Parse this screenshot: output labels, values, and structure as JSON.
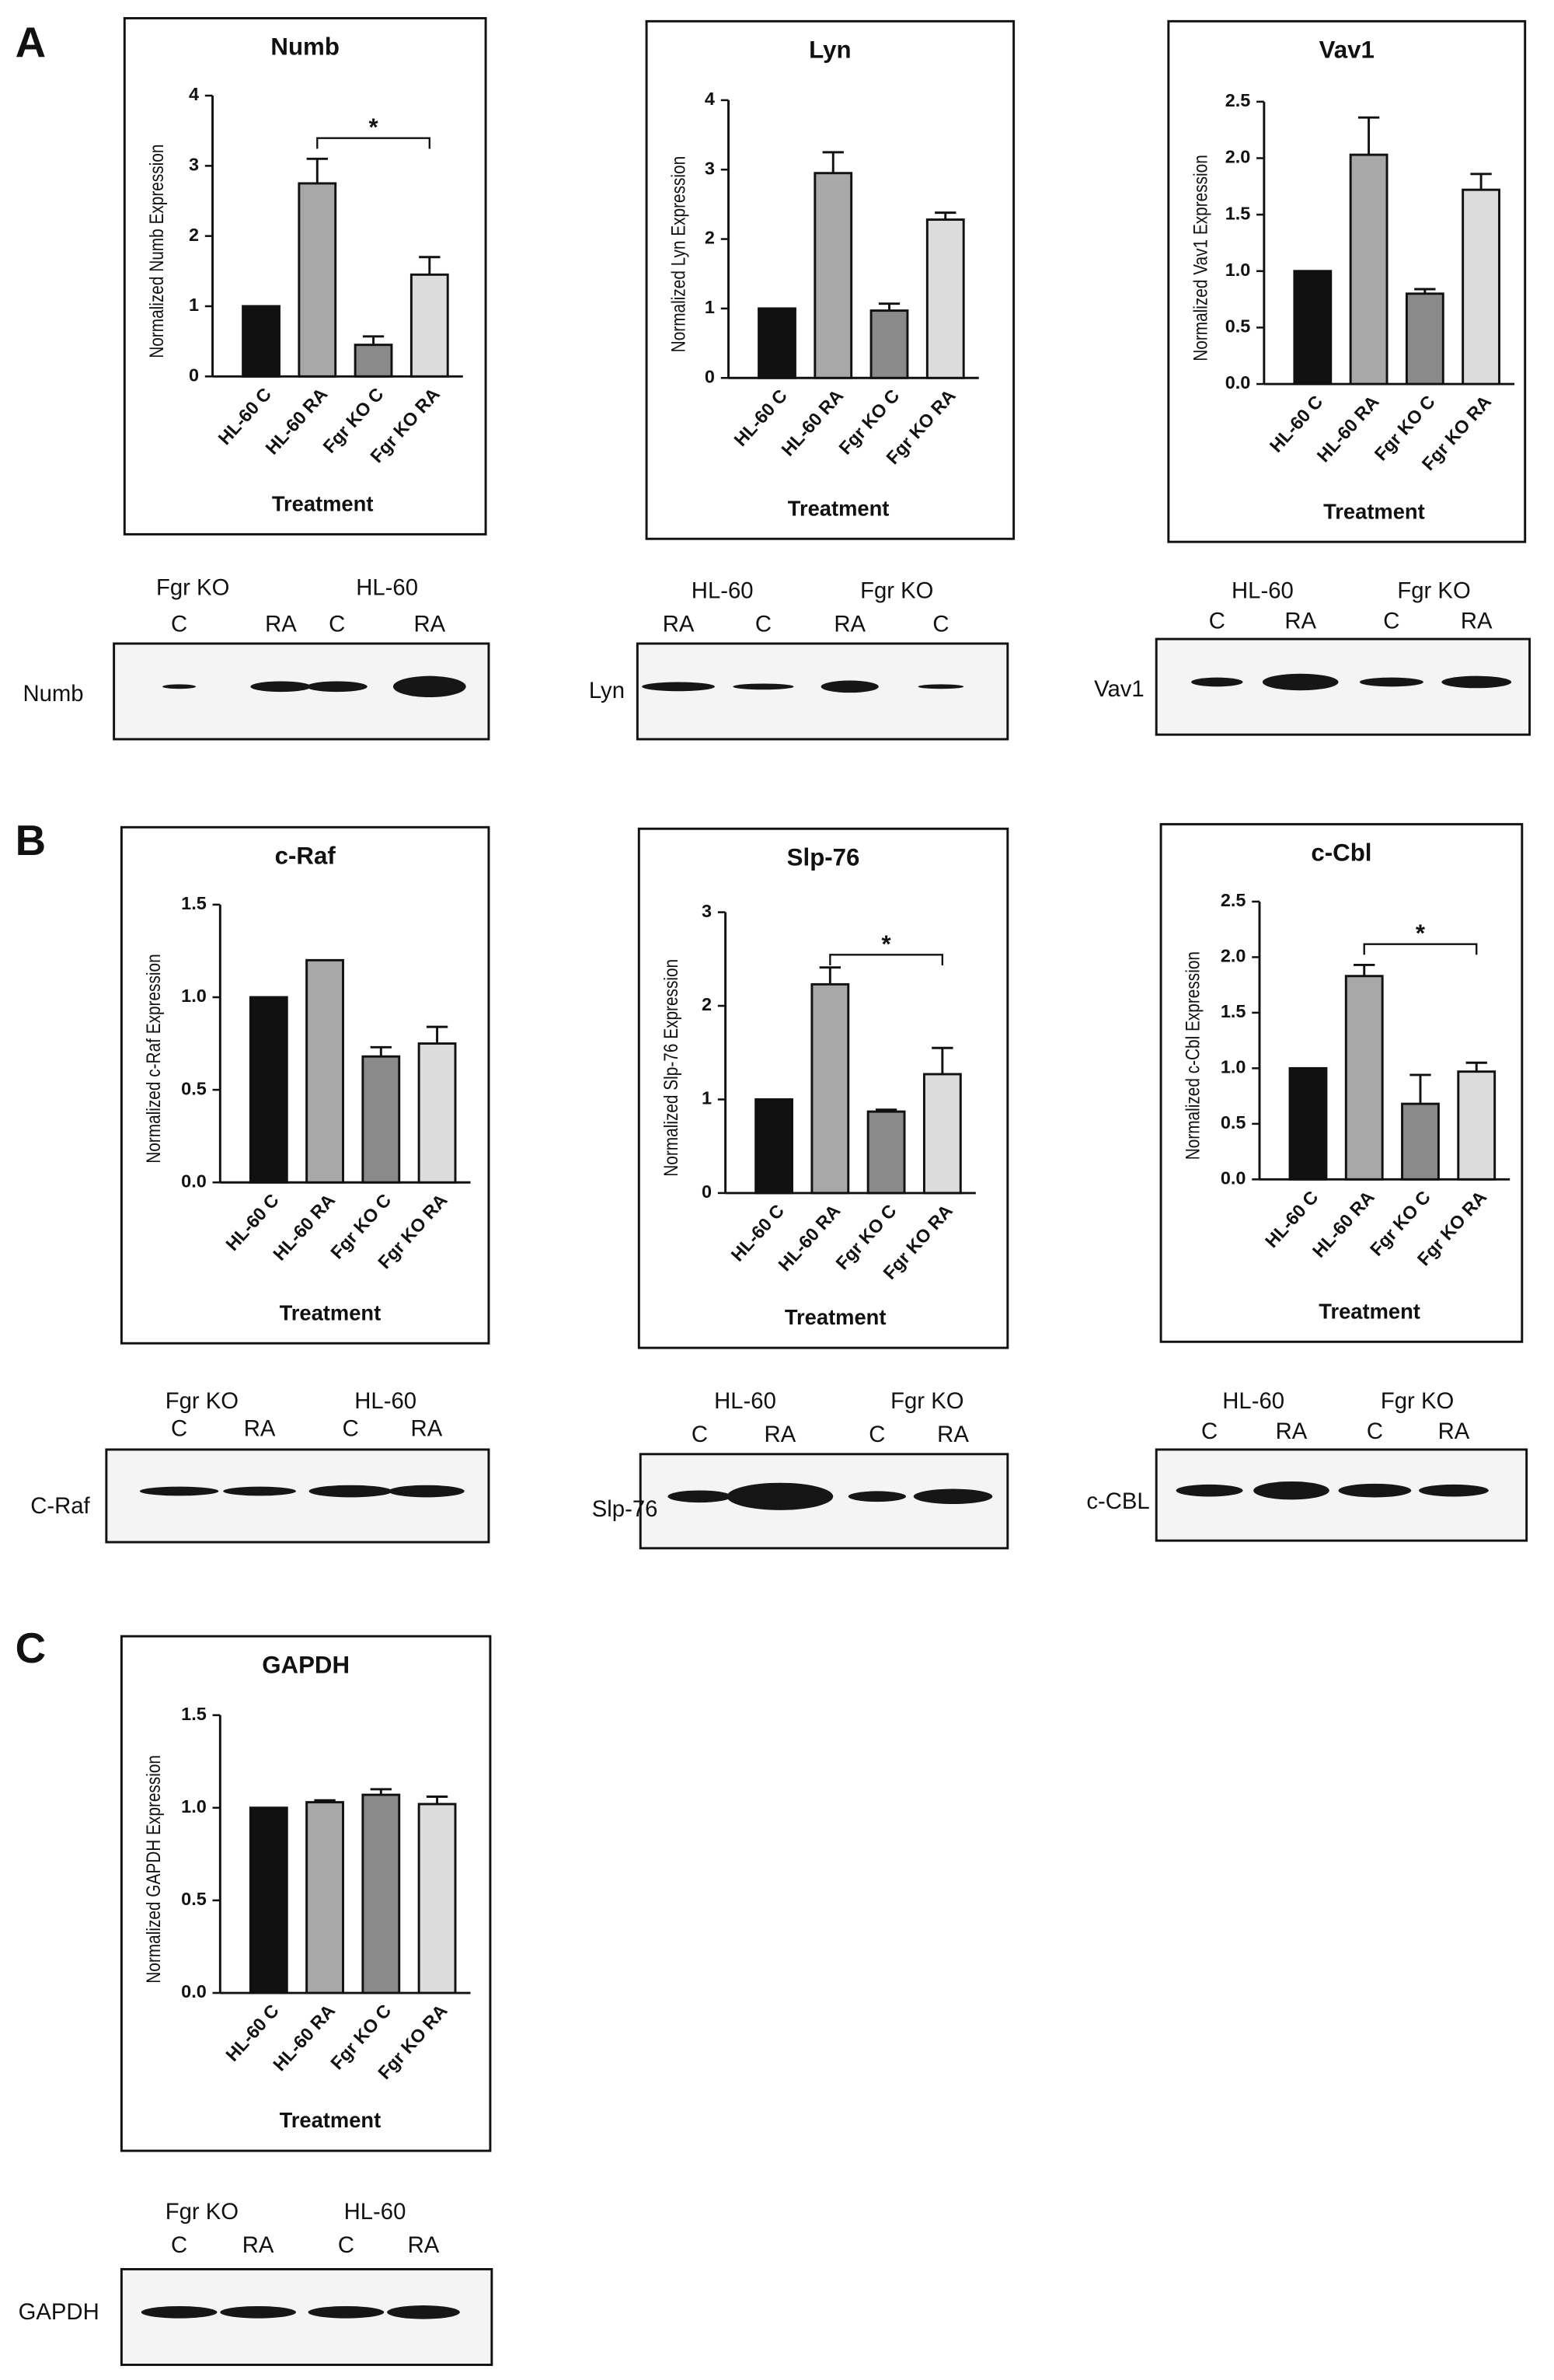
{
  "panels": [
    "A",
    "B",
    "C"
  ],
  "chart_data": [
    {
      "type": "bar",
      "title": "Numb",
      "ylabel": "Normalized Numb Expression",
      "xlabel": "Treatment",
      "categories": [
        "HL-60 C",
        "HL-60 RA",
        "Fgr KO C",
        "Fgr KO RA"
      ],
      "values": [
        1,
        2.75,
        0.45,
        1.45
      ],
      "errors": [
        null,
        0.35,
        0.12,
        0.25
      ],
      "colors": [
        "#111111",
        "#a8a8a8",
        "#8a8a8a",
        "#dcdcdc"
      ],
      "ylim": [
        0,
        4
      ],
      "yticks": [
        0,
        1,
        2,
        3,
        4
      ],
      "annotation": "*"
    },
    {
      "type": "bar",
      "title": "Lyn",
      "ylabel": "Normalized Lyn Expression",
      "xlabel": "Treatment",
      "categories": [
        "HL-60 C",
        "HL-60 RA",
        "Fgr KO C",
        "Fgr KO RA"
      ],
      "values": [
        1,
        2.95,
        0.97,
        2.28
      ],
      "errors": [
        null,
        0.3,
        0.1,
        0.1
      ],
      "colors": [
        "#111111",
        "#a8a8a8",
        "#8a8a8a",
        "#dcdcdc"
      ],
      "ylim": [
        0,
        4
      ],
      "yticks": [
        0,
        1,
        2,
        3,
        4
      ]
    },
    {
      "type": "bar",
      "title": "Vav1",
      "ylabel": "Normalized Vav1 Expression",
      "xlabel": "Treatment",
      "categories": [
        "HL-60 C",
        "HL-60 RA",
        "Fgr KO C",
        "Fgr KO RA"
      ],
      "values": [
        1,
        2.03,
        0.8,
        1.72
      ],
      "errors": [
        null,
        0.33,
        0.04,
        0.14
      ],
      "colors": [
        "#111111",
        "#a8a8a8",
        "#8a8a8a",
        "#dcdcdc"
      ],
      "ylim": [
        0,
        2.5
      ],
      "yticks": [
        {
          "value": 0,
          "label": "0.0"
        },
        0.5,
        {
          "value": 1,
          "label": "1.0"
        },
        1.5,
        {
          "value": 2,
          "label": "2.0"
        },
        2.5
      ]
    },
    {
      "type": "bar",
      "title": "c-Raf",
      "ylabel": "Normalized c-Raf Expression",
      "xlabel": "Treatment",
      "categories": [
        "HL-60 C",
        "HL-60 RA",
        "Fgr KO C",
        "Fgr KO RA"
      ],
      "values": [
        1,
        1.2,
        0.68,
        0.75
      ],
      "errors": [
        null,
        null,
        0.05,
        0.09
      ],
      "colors": [
        "#111111",
        "#a8a8a8",
        "#8a8a8a",
        "#dcdcdc"
      ],
      "ylim": [
        0,
        1.5
      ],
      "yticks": [
        {
          "value": 0,
          "label": "0.0"
        },
        0.5,
        {
          "value": 1,
          "label": "1.0"
        },
        1.5
      ]
    },
    {
      "type": "bar",
      "title": "Slp-76",
      "ylabel": "Normalized Slp-76 Expression",
      "xlabel": "Treatment",
      "categories": [
        "HL-60 C",
        "HL-60 RA",
        "Fgr KO C",
        "Fgr KO RA"
      ],
      "values": [
        1,
        2.23,
        0.87,
        1.27
      ],
      "errors": [
        null,
        0.18,
        0.02,
        0.28
      ],
      "colors": [
        "#111111",
        "#a8a8a8",
        "#8a8a8a",
        "#dcdcdc"
      ],
      "ylim": [
        0,
        3
      ],
      "yticks": [
        0,
        1,
        2,
        3
      ],
      "annotation": "*"
    },
    {
      "type": "bar",
      "title": "c-Cbl",
      "ylabel": "Normalized c-Cbl Expression",
      "xlabel": "Treatment",
      "categories": [
        "HL-60 C",
        "HL-60 RA",
        "Fgr KO C",
        "Fgr KO RA"
      ],
      "values": [
        1,
        1.83,
        0.68,
        0.97
      ],
      "errors": [
        null,
        0.1,
        0.26,
        0.08
      ],
      "colors": [
        "#111111",
        "#a8a8a8",
        "#8a8a8a",
        "#dcdcdc"
      ],
      "ylim": [
        0,
        2.5
      ],
      "yticks": [
        {
          "value": 0,
          "label": "0.0"
        },
        0.5,
        {
          "value": 1,
          "label": "1.0"
        },
        1.5,
        {
          "value": 2,
          "label": "2.0"
        },
        2.5
      ],
      "annotation": "*"
    },
    {
      "type": "bar",
      "title": "GAPDH",
      "ylabel": "Normalized GAPDH Expression",
      "xlabel": "Treatment",
      "categories": [
        "HL-60 C",
        "HL-60 RA",
        "Fgr KO C",
        "Fgr KO RA"
      ],
      "values": [
        1,
        1.03,
        1.07,
        1.02
      ],
      "errors": [
        null,
        0.01,
        0.03,
        0.04
      ],
      "colors": [
        "#111111",
        "#a8a8a8",
        "#8a8a8a",
        "#dcdcdc"
      ],
      "ylim": [
        0,
        1.5
      ],
      "yticks": [
        {
          "value": 0,
          "label": "0.0"
        },
        0.5,
        {
          "value": 1,
          "label": "1.0"
        },
        1.5
      ]
    }
  ],
  "blots": [
    {
      "label": "Numb",
      "groups": [
        "Fgr KO",
        "HL-60"
      ],
      "lanes": [
        "C",
        "RA",
        "C",
        "RA"
      ]
    },
    {
      "label": "Lyn",
      "groups": [
        "HL-60",
        "Fgr KO"
      ],
      "lanes": [
        "RA",
        "C",
        "RA",
        "C"
      ]
    },
    {
      "label": "Vav1",
      "groups": [
        "HL-60",
        "Fgr KO"
      ],
      "lanes": [
        "C",
        "RA",
        "C",
        "RA"
      ]
    },
    {
      "label": "C-Raf",
      "groups": [
        "Fgr KO",
        "HL-60"
      ],
      "lanes": [
        "C",
        "RA",
        "C",
        "RA"
      ]
    },
    {
      "label": "Slp-76",
      "groups": [
        "HL-60",
        "Fgr KO"
      ],
      "lanes": [
        "C",
        "RA",
        "C",
        "RA"
      ]
    },
    {
      "label": "c-CBL",
      "groups": [
        "HL-60",
        "Fgr KO"
      ],
      "lanes": [
        "C",
        "RA",
        "C",
        "RA"
      ]
    },
    {
      "label": "GAPDH",
      "groups": [
        "Fgr KO",
        "HL-60"
      ],
      "lanes": [
        "C",
        "RA",
        "C",
        "RA"
      ]
    }
  ]
}
